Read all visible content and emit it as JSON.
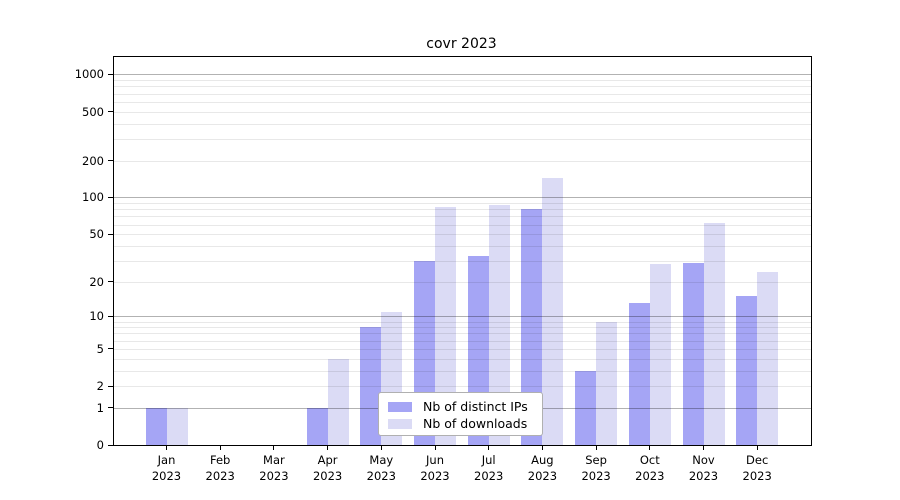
{
  "title": "covr 2023",
  "legend": {
    "items": [
      {
        "label": "Nb of distinct IPs",
        "series": "ips"
      },
      {
        "label": "Nb of downloads",
        "series": "downloads"
      }
    ]
  },
  "colors": {
    "ips": "#a5a5f5",
    "downloads": "#dbdbf5",
    "axis": "#000000",
    "grid_major": "#b3b3b3",
    "grid_minor": "#e8e8e8",
    "legend_border": "#b0b0b0"
  },
  "y_axis": {
    "ticks": [
      {
        "label": "0",
        "value": 0
      },
      {
        "label": "1",
        "value": 1
      },
      {
        "label": "2",
        "value": 2
      },
      {
        "label": "5",
        "value": 5
      },
      {
        "label": "10",
        "value": 10
      },
      {
        "label": "20",
        "value": 20
      },
      {
        "label": "50",
        "value": 50
      },
      {
        "label": "100",
        "value": 100
      },
      {
        "label": "200",
        "value": 200
      },
      {
        "label": "500",
        "value": 500
      },
      {
        "label": "1000",
        "value": 1000
      }
    ]
  },
  "x_axis": {
    "ticks": [
      {
        "month": "Jan",
        "year": "2023"
      },
      {
        "month": "Feb",
        "year": "2023"
      },
      {
        "month": "Mar",
        "year": "2023"
      },
      {
        "month": "Apr",
        "year": "2023"
      },
      {
        "month": "May",
        "year": "2023"
      },
      {
        "month": "Jun",
        "year": "2023"
      },
      {
        "month": "Jul",
        "year": "2023"
      },
      {
        "month": "Aug",
        "year": "2023"
      },
      {
        "month": "Sep",
        "year": "2023"
      },
      {
        "month": "Oct",
        "year": "2023"
      },
      {
        "month": "Nov",
        "year": "2023"
      },
      {
        "month": "Dec",
        "year": "2023"
      }
    ]
  },
  "chart_data": {
    "type": "bar",
    "title": "covr 2023",
    "categories": [
      "Jan 2023",
      "Feb 2023",
      "Mar 2023",
      "Apr 2023",
      "May 2023",
      "Jun 2023",
      "Jul 2023",
      "Aug 2023",
      "Sep 2023",
      "Oct 2023",
      "Nov 2023",
      "Dec 2023"
    ],
    "series": [
      {
        "name": "Nb of distinct IPs",
        "values": [
          1,
          0,
          0,
          1,
          8,
          30,
          33,
          81,
          3,
          13,
          29,
          15
        ]
      },
      {
        "name": "Nb of downloads",
        "values": [
          1,
          0,
          0,
          4,
          11,
          84,
          86,
          144,
          9,
          28,
          62,
          24
        ]
      }
    ],
    "xlabel": "",
    "ylabel": "",
    "yscale": "log1p",
    "ylim": [
      0,
      1380
    ],
    "y_tick_values": [
      0,
      1,
      2,
      5,
      10,
      20,
      50,
      100,
      200,
      500,
      1000
    ],
    "grid": true,
    "major_grid_values": [
      1,
      10,
      100,
      1000
    ],
    "legend_position": "inside-bottom-center"
  }
}
